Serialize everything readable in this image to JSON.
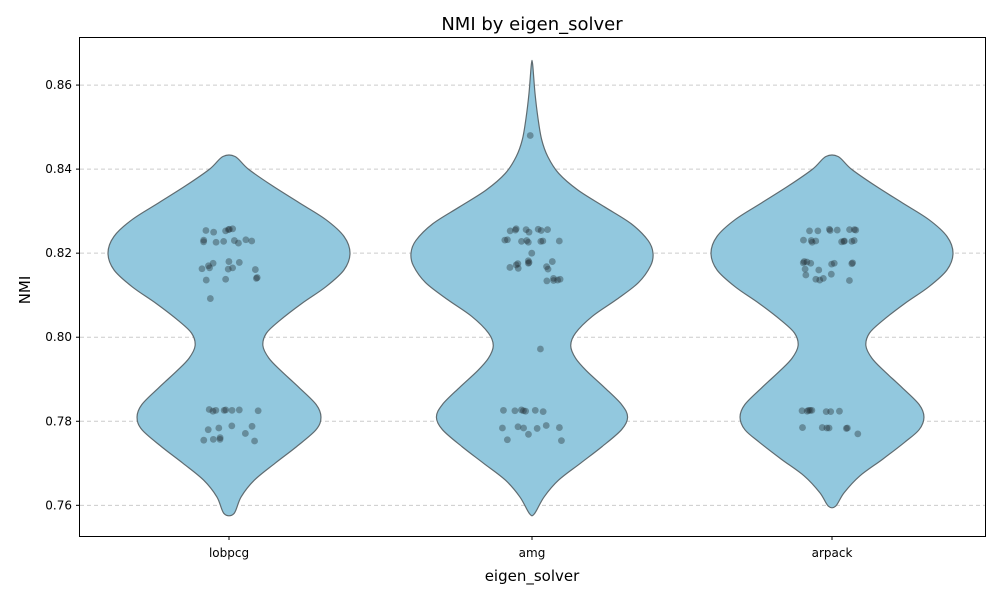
{
  "chart_data": {
    "type": "violin",
    "title": "NMI by eigen_solver",
    "xlabel": "eigen_solver",
    "ylabel": "NMI",
    "categories": [
      "lobpcg",
      "amg",
      "arpack"
    ],
    "ylim": [
      0.7527,
      0.8712
    ],
    "yticks": [
      0.76,
      0.78,
      0.8,
      0.82,
      0.84,
      0.86
    ],
    "ytick_labels": [
      "0.76",
      "0.78",
      "0.80",
      "0.82",
      "0.84",
      "0.86"
    ],
    "grid": "y-dashed",
    "colors": {
      "violin_fill": "#92C8DE",
      "violin_edge": "#5f6b70",
      "point": "#1f2a30",
      "grid": "#cccccc"
    },
    "violins": [
      {
        "category": "lobpcg",
        "min": 0.758,
        "max": 0.8432,
        "profile": [
          [
            0.758,
            0.04
          ],
          [
            0.762,
            0.1
          ],
          [
            0.766,
            0.21
          ],
          [
            0.77,
            0.38
          ],
          [
            0.774,
            0.56
          ],
          [
            0.778,
            0.72
          ],
          [
            0.781,
            0.76
          ],
          [
            0.784,
            0.72
          ],
          [
            0.788,
            0.58
          ],
          [
            0.792,
            0.43
          ],
          [
            0.795,
            0.33
          ],
          [
            0.798,
            0.28
          ],
          [
            0.801,
            0.31
          ],
          [
            0.804,
            0.42
          ],
          [
            0.808,
            0.6
          ],
          [
            0.812,
            0.8
          ],
          [
            0.816,
            0.95
          ],
          [
            0.82,
            1.0
          ],
          [
            0.824,
            0.95
          ],
          [
            0.828,
            0.8
          ],
          [
            0.832,
            0.58
          ],
          [
            0.836,
            0.36
          ],
          [
            0.84,
            0.16
          ],
          [
            0.843,
            0.05
          ]
        ],
        "points": [
          0.8256,
          0.8258,
          0.8254,
          0.825,
          0.8253,
          0.8257,
          0.8231,
          0.8229,
          0.823,
          0.8228,
          0.8226,
          0.8232,
          0.8224,
          0.8227,
          0.818,
          0.8176,
          0.8178,
          0.817,
          0.8165,
          0.8162,
          0.8165,
          0.8163,
          0.8161,
          0.8142,
          0.8136,
          0.8138,
          0.814,
          0.8092,
          0.7826,
          0.7826,
          0.7827,
          0.7826,
          0.7828,
          0.7825,
          0.7827,
          0.7824,
          0.7789,
          0.7784,
          0.778,
          0.7771,
          0.7761,
          0.7757,
          0.7755,
          0.7753,
          0.7757,
          0.7788
        ]
      },
      {
        "category": "amg",
        "min": 0.758,
        "max": 0.8652,
        "profile": [
          [
            0.758,
            0.02
          ],
          [
            0.762,
            0.1
          ],
          [
            0.766,
            0.22
          ],
          [
            0.77,
            0.4
          ],
          [
            0.774,
            0.58
          ],
          [
            0.778,
            0.74
          ],
          [
            0.781,
            0.79
          ],
          [
            0.784,
            0.74
          ],
          [
            0.788,
            0.6
          ],
          [
            0.792,
            0.45
          ],
          [
            0.795,
            0.36
          ],
          [
            0.798,
            0.32
          ],
          [
            0.801,
            0.36
          ],
          [
            0.805,
            0.5
          ],
          [
            0.809,
            0.7
          ],
          [
            0.813,
            0.88
          ],
          [
            0.817,
            0.98
          ],
          [
            0.82,
            1.0
          ],
          [
            0.823,
            0.96
          ],
          [
            0.827,
            0.82
          ],
          [
            0.831,
            0.6
          ],
          [
            0.835,
            0.38
          ],
          [
            0.839,
            0.22
          ],
          [
            0.843,
            0.13
          ],
          [
            0.847,
            0.08
          ],
          [
            0.852,
            0.05
          ],
          [
            0.858,
            0.025
          ],
          [
            0.865,
            0.005
          ]
        ],
        "points": [
          0.848,
          0.8258,
          0.8257,
          0.8256,
          0.8256,
          0.8254,
          0.8253,
          0.8255,
          0.825,
          0.8232,
          0.8231,
          0.823,
          0.8229,
          0.8228,
          0.8229,
          0.8228,
          0.8226,
          0.82,
          0.8182,
          0.818,
          0.8178,
          0.8176,
          0.8175,
          0.8172,
          0.8168,
          0.8166,
          0.8164,
          0.8162,
          0.814,
          0.8138,
          0.8136,
          0.8135,
          0.8134,
          0.7972,
          0.7826,
          0.7826,
          0.7827,
          0.7825,
          0.7825,
          0.7824,
          0.7823,
          0.779,
          0.7787,
          0.7785,
          0.7784,
          0.7784,
          0.7783,
          0.7769,
          0.7756,
          0.7754
        ]
      },
      {
        "category": "arpack",
        "min": 0.7598,
        "max": 0.8432,
        "profile": [
          [
            0.7598,
            0.03
          ],
          [
            0.763,
            0.1
          ],
          [
            0.767,
            0.23
          ],
          [
            0.771,
            0.42
          ],
          [
            0.775,
            0.6
          ],
          [
            0.778,
            0.72
          ],
          [
            0.781,
            0.76
          ],
          [
            0.784,
            0.72
          ],
          [
            0.788,
            0.58
          ],
          [
            0.792,
            0.43
          ],
          [
            0.795,
            0.33
          ],
          [
            0.798,
            0.28
          ],
          [
            0.801,
            0.31
          ],
          [
            0.804,
            0.42
          ],
          [
            0.808,
            0.6
          ],
          [
            0.812,
            0.8
          ],
          [
            0.816,
            0.95
          ],
          [
            0.82,
            1.0
          ],
          [
            0.824,
            0.95
          ],
          [
            0.828,
            0.8
          ],
          [
            0.832,
            0.58
          ],
          [
            0.836,
            0.36
          ],
          [
            0.84,
            0.16
          ],
          [
            0.843,
            0.05
          ]
        ],
        "points": [
          0.8257,
          0.8256,
          0.8255,
          0.8254,
          0.8253,
          0.8256,
          0.8255,
          0.8253,
          0.8231,
          0.823,
          0.8229,
          0.8228,
          0.8227,
          0.823,
          0.8229,
          0.8228,
          0.8226,
          0.818,
          0.8179,
          0.8177,
          0.8176,
          0.8175,
          0.8177,
          0.8176,
          0.8174,
          0.8162,
          0.816,
          0.815,
          0.8148,
          0.814,
          0.8138,
          0.8136,
          0.8135,
          0.7826,
          0.7826,
          0.7825,
          0.7824,
          0.7824,
          0.7823,
          0.7826,
          0.7823,
          0.7784,
          0.7785,
          0.7784,
          0.7784,
          0.7783,
          0.7785,
          0.777
        ]
      }
    ]
  }
}
